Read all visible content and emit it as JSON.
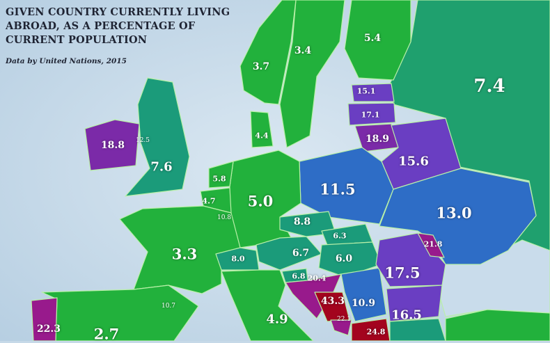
{
  "title_lines": [
    "GIVEN COUNTRY CURRENTLY LIVING",
    "ABROAD, AS A PERCENTAGE OF",
    "CURRENT POPULATION"
  ],
  "subtitle": "Data by United Nations, 2015",
  "colors": {
    "sea": "#c6d9e8",
    "low_green": "#22b13c",
    "mid_teal": "#1b9b7a",
    "blue": "#2e6dc6",
    "violet": "#6a3ec2",
    "purple": "#7b2aa8",
    "magenta": "#981a8c",
    "red": "#a3041e"
  },
  "countries": {
    "russia": {
      "value": "7.4"
    },
    "finland": {
      "value": "5.4"
    },
    "sweden": {
      "value": "3.4"
    },
    "norway": {
      "value": "3.7"
    },
    "denmark": {
      "value": "4.4"
    },
    "estonia": {
      "value": "15.1"
    },
    "latvia": {
      "value": "17.1"
    },
    "lithuania": {
      "value": "18.9"
    },
    "ireland": {
      "value": "18.8"
    },
    "isle_of_man": {
      "value": "12.5"
    },
    "uk": {
      "value": "7.6"
    },
    "belarus": {
      "value": "15.6"
    },
    "poland": {
      "value": "11.5"
    },
    "ukraine": {
      "value": "13.0"
    },
    "netherlands": {
      "value": "5.8"
    },
    "belgium": {
      "value": "4.7"
    },
    "luxembourg": {
      "value": "10.8"
    },
    "germany": {
      "value": "5.0"
    },
    "czechia": {
      "value": "8.8"
    },
    "slovakia": {
      "value": "6.3"
    },
    "austria": {
      "value": "6.7"
    },
    "hungary": {
      "value": "6.0"
    },
    "switzerland": {
      "value": "8.0"
    },
    "france": {
      "value": "3.3"
    },
    "moldova": {
      "value": "21.8"
    },
    "romania": {
      "value": "17.5"
    },
    "slovenia": {
      "value": "6.8"
    },
    "croatia": {
      "value": "20.4"
    },
    "bosnia": {
      "value": "43.3"
    },
    "serbia": {
      "value": "10.9"
    },
    "montenegro": {
      "value": "22.1"
    },
    "bulgaria": {
      "value": "16.5"
    },
    "north_macedonia": {
      "value": "24.8"
    },
    "andorra": {
      "value": "10.7"
    },
    "portugal": {
      "value": "22.3"
    },
    "spain": {
      "value": "2.7"
    },
    "italy": {
      "value": "4.9"
    }
  }
}
